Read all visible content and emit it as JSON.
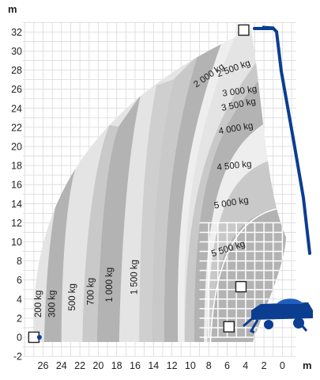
{
  "chart_data": {
    "type": "load-chart",
    "title": "",
    "xlabel": "m",
    "ylabel": "m",
    "xlim": [
      28,
      -1.5
    ],
    "ylim": [
      -2,
      33.5
    ],
    "x_ticks": [
      26,
      24,
      22,
      20,
      18,
      16,
      14,
      12,
      10,
      8,
      6,
      4,
      2,
      0
    ],
    "y_ticks": [
      -2,
      0,
      2,
      4,
      6,
      8,
      10,
      12,
      14,
      16,
      18,
      20,
      22,
      24,
      26,
      28,
      30,
      32
    ],
    "grid": true,
    "load_zones": [
      {
        "label": "200 kg",
        "label_at": [
          26.2,
          3.5
        ],
        "color": "#eeeeee"
      },
      {
        "label": "300 kg",
        "label_at": [
          24.7,
          3.5
        ],
        "color": "#b3b3b3"
      },
      {
        "label": "500 kg",
        "label_at": [
          22.5,
          4.2
        ],
        "color": "#eeeeee"
      },
      {
        "label": "700 kg",
        "label_at": [
          20.5,
          4.8
        ],
        "color": "#c9c9c9"
      },
      {
        "label": "1 000 kg",
        "label_at": [
          18.5,
          5.5
        ],
        "color": "#b3b3b3"
      },
      {
        "label": "1 500 kg",
        "label_at": [
          15.8,
          6.3
        ],
        "color": "#e8e8e8"
      },
      {
        "label": "2 000 kg",
        "label_at": [
          7.8,
          27.2
        ],
        "color": "#c9c9c9"
      },
      {
        "label": "2 500 kg",
        "label_at": [
          5.2,
          27.9
        ],
        "color": "#b3b3b3"
      },
      {
        "label": "3 000 kg",
        "label_at": [
          4.6,
          25.5
        ],
        "color": "#eeeeee"
      },
      {
        "label": "3 500 kg",
        "label_at": [
          4.7,
          24.1
        ],
        "color": "#c9c9c9"
      },
      {
        "label": "4 000 kg",
        "label_at": [
          5.0,
          21.6
        ],
        "color": "#b3b3b3"
      },
      {
        "label": "4 500 kg",
        "label_at": [
          5.2,
          17.7
        ],
        "color": "#eeeeee"
      },
      {
        "label": "5 000 kg",
        "label_at": [
          5.5,
          13.8
        ],
        "color": "#c9c9c9"
      },
      {
        "label": "5 500 kg",
        "label_at": [
          5.8,
          9.0
        ],
        "color": "#b3b3b3"
      }
    ],
    "boom_points": [
      {
        "name": "max-height",
        "x": 4.2,
        "y": 32.2
      },
      {
        "name": "max-reach",
        "x": 27.0,
        "y": 0
      },
      {
        "name": "mid-low",
        "x": 4.5,
        "y": 5.3
      },
      {
        "name": "retracted",
        "x": 5.8,
        "y": 1.1
      }
    ],
    "colors": {
      "machine": "#0b3d91",
      "grid": "#d9d9d9"
    }
  }
}
